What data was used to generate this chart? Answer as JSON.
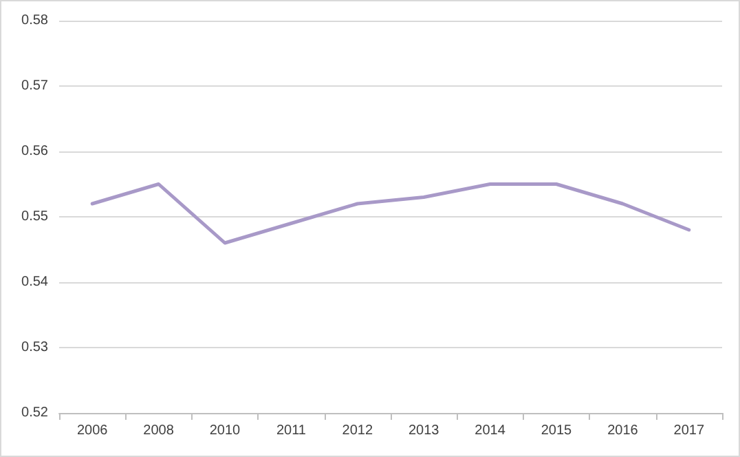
{
  "chart_data": {
    "type": "line",
    "categories": [
      "2006",
      "2008",
      "2010",
      "2011",
      "2012",
      "2013",
      "2014",
      "2015",
      "2016",
      "2017"
    ],
    "series": [
      {
        "color": "#a899c8",
        "values": [
          0.552,
          0.555,
          0.546,
          0.549,
          0.552,
          0.553,
          0.555,
          0.555,
          0.552,
          0.548
        ]
      }
    ],
    "ylim": [
      0.52,
      0.58
    ],
    "yticks": [
      0.52,
      0.53,
      0.54,
      0.55,
      0.56,
      0.57,
      0.58
    ],
    "grid": "y",
    "marker": "none",
    "line_style": "solid"
  }
}
